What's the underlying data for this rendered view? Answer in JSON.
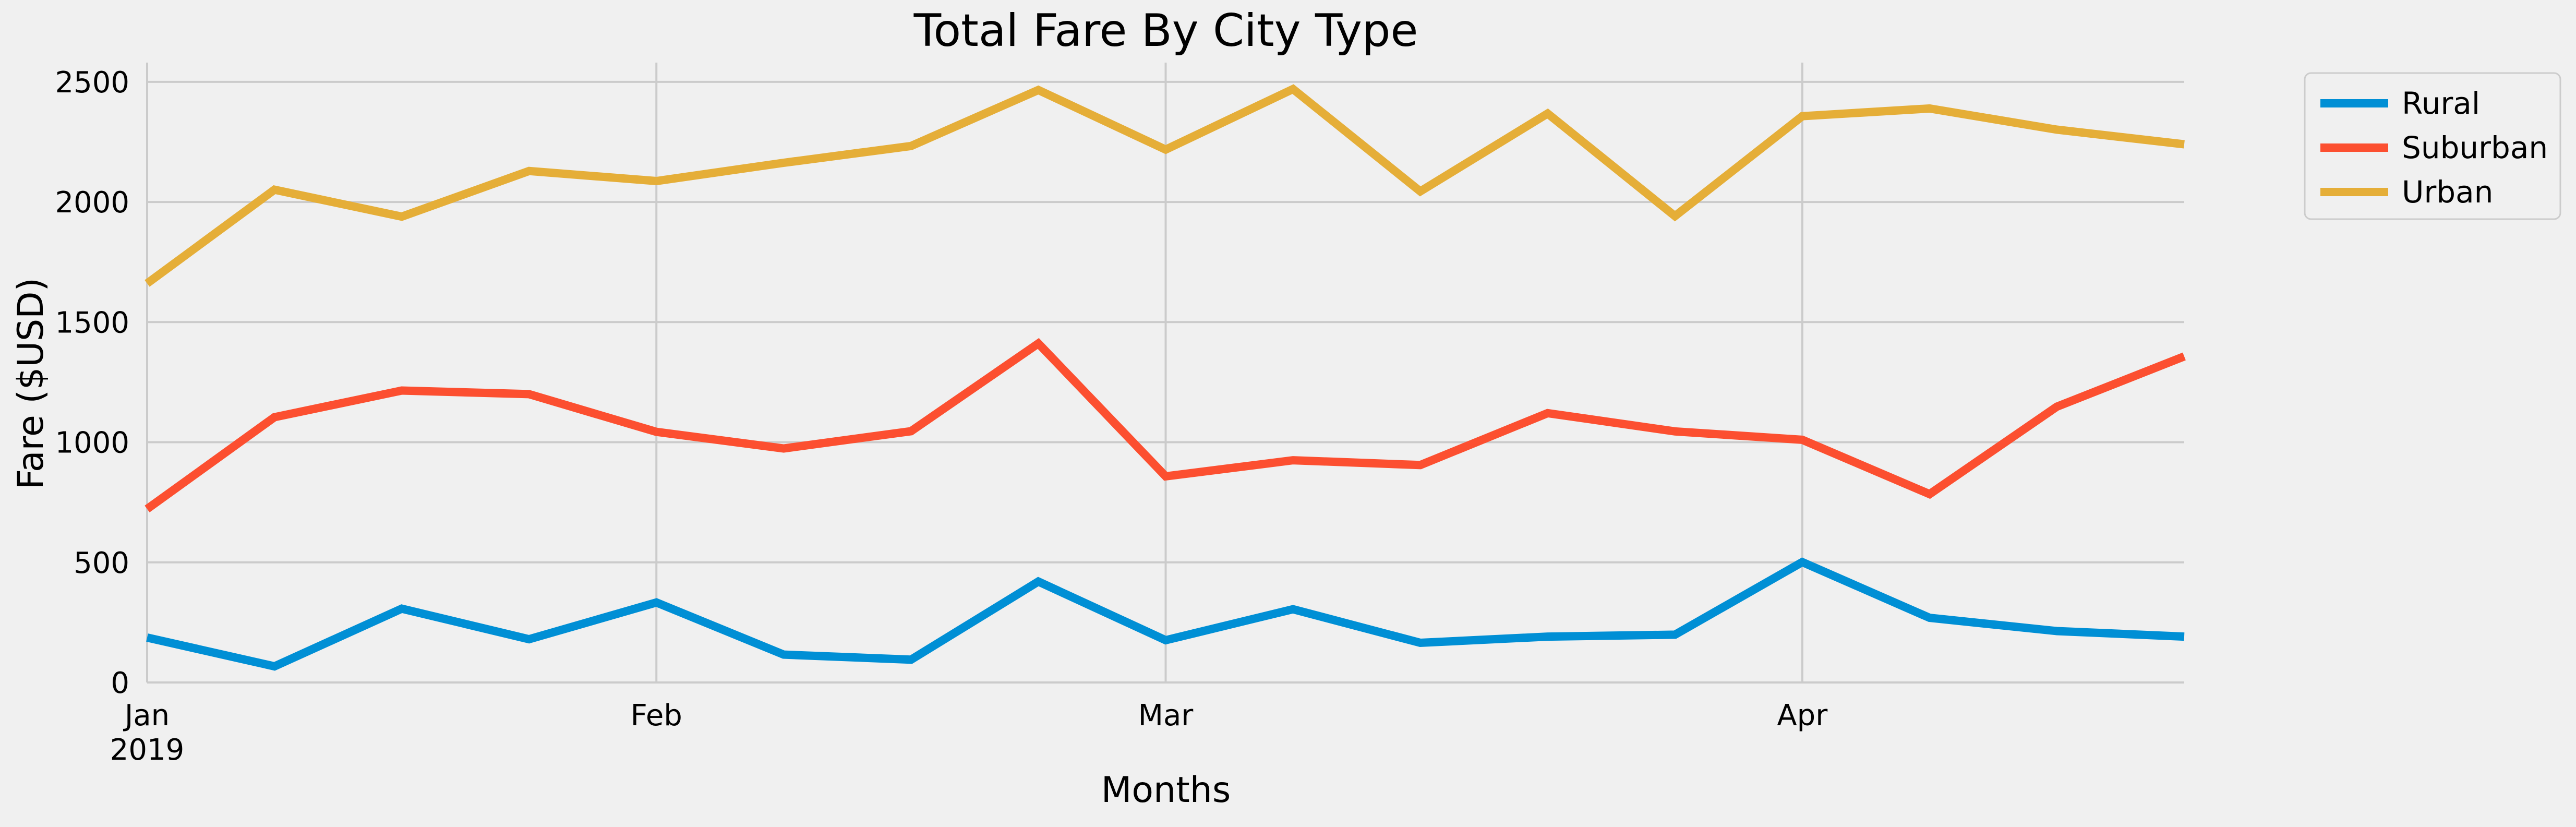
{
  "chart_data": {
    "type": "line",
    "title": "Total Fare By City Type",
    "xlabel": "Months",
    "ylabel": "Fare ($USD)",
    "x_scale": "date",
    "x": [
      "2019-01-06",
      "2019-01-13",
      "2019-01-20",
      "2019-01-27",
      "2019-02-03",
      "2019-02-10",
      "2019-02-17",
      "2019-02-24",
      "2019-03-03",
      "2019-03-10",
      "2019-03-17",
      "2019-03-24",
      "2019-03-31",
      "2019-04-07",
      "2019-04-14",
      "2019-04-21",
      "2019-04-28"
    ],
    "xlim": [
      "2019-01-06",
      "2019-04-28"
    ],
    "xticks": [
      {
        "date": "2019-01-06",
        "label": "Jan",
        "sublabel": "2019"
      },
      {
        "date": "2019-02-03",
        "label": "Feb",
        "sublabel": ""
      },
      {
        "date": "2019-03-03",
        "label": "Mar",
        "sublabel": ""
      },
      {
        "date": "2019-04-07",
        "label": "Apr",
        "sublabel": ""
      }
    ],
    "ylim": [
      0,
      2580
    ],
    "yticks": [
      0,
      500,
      1000,
      1500,
      2000,
      2500
    ],
    "grid": true,
    "legend_position": "outside-top-right",
    "series": [
      {
        "name": "Rural",
        "color": "#008fd5",
        "values": [
          187,
          67,
          307,
          180,
          333,
          116,
          95,
          420,
          176,
          305,
          165,
          191,
          199,
          501,
          269,
          214,
          191
        ]
      },
      {
        "name": "Suburban",
        "color": "#fc4f30",
        "values": [
          722,
          1104,
          1215,
          1200,
          1043,
          974,
          1046,
          1411,
          858,
          925,
          905,
          1121,
          1045,
          1010,
          784,
          1148,
          1357
        ]
      },
      {
        "name": "Urban",
        "color": "#e5ae38",
        "values": [
          1661,
          2051,
          1939,
          2129,
          2087,
          2163,
          2233,
          2466,
          2218,
          2470,
          2044,
          2368,
          1941,
          2357,
          2389,
          2301,
          2240
        ]
      }
    ]
  }
}
